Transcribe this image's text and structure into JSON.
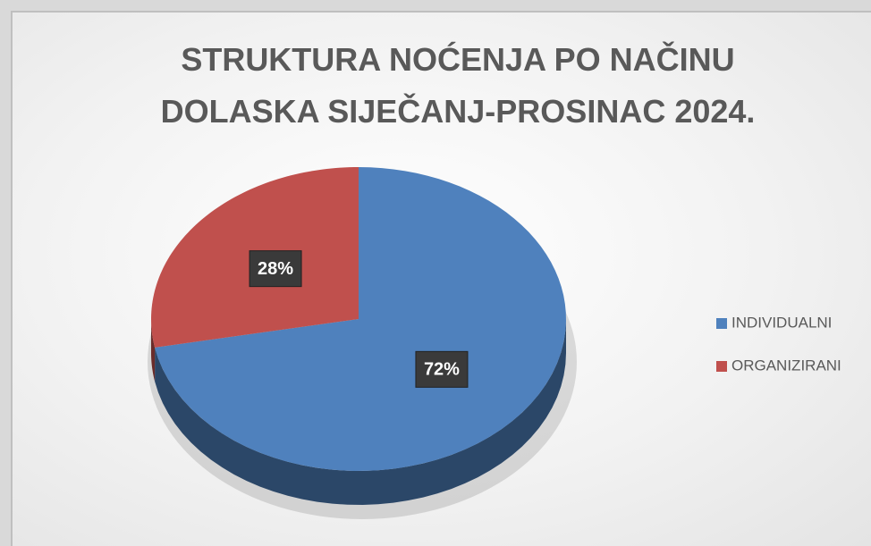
{
  "chart_data": {
    "type": "pie",
    "title": "STRUKTURA NOĆENJA PO NAČINU DOLASKA SIJEČANJ-PROSINAC 2024.",
    "categories": [
      "INDIVIDUALNI",
      "ORGANIZIRANI"
    ],
    "values": [
      72,
      28
    ],
    "value_labels": [
      "72%",
      "28%"
    ],
    "colors": [
      "#4f81bd",
      "#c0504d"
    ],
    "legend": "right"
  }
}
